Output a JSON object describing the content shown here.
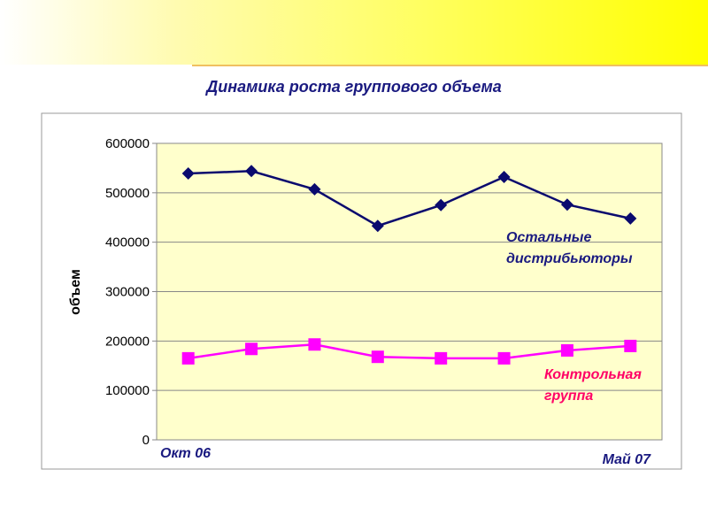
{
  "chart_data": {
    "type": "line",
    "title": "Динамика роста группового объема",
    "xlabel": "",
    "ylabel": "объем",
    "ylim": [
      0,
      600000
    ],
    "yticks": [
      "0",
      "100000",
      "200000",
      "300000",
      "400000",
      "500000",
      "600000"
    ],
    "x_start_label": "Окт 06",
    "x_end_label": "Май 07",
    "grid": true,
    "series": [
      {
        "name": "Остальные дистрибьюторы",
        "label_lines": [
          "Остальные",
          "дистрибьюторы"
        ],
        "color": "#0a0a6e",
        "marker": "diamond",
        "values": [
          539000,
          544000,
          507000,
          433000,
          475000,
          532000,
          476000,
          448000
        ]
      },
      {
        "name": "Контрольная группа",
        "label_lines": [
          "Контрольная",
          "группа"
        ],
        "color": "#ff00ff",
        "label_color": "#ff0066",
        "marker": "square",
        "values": [
          165000,
          184000,
          193000,
          168000,
          165000,
          165000,
          181000,
          190000
        ]
      }
    ]
  }
}
